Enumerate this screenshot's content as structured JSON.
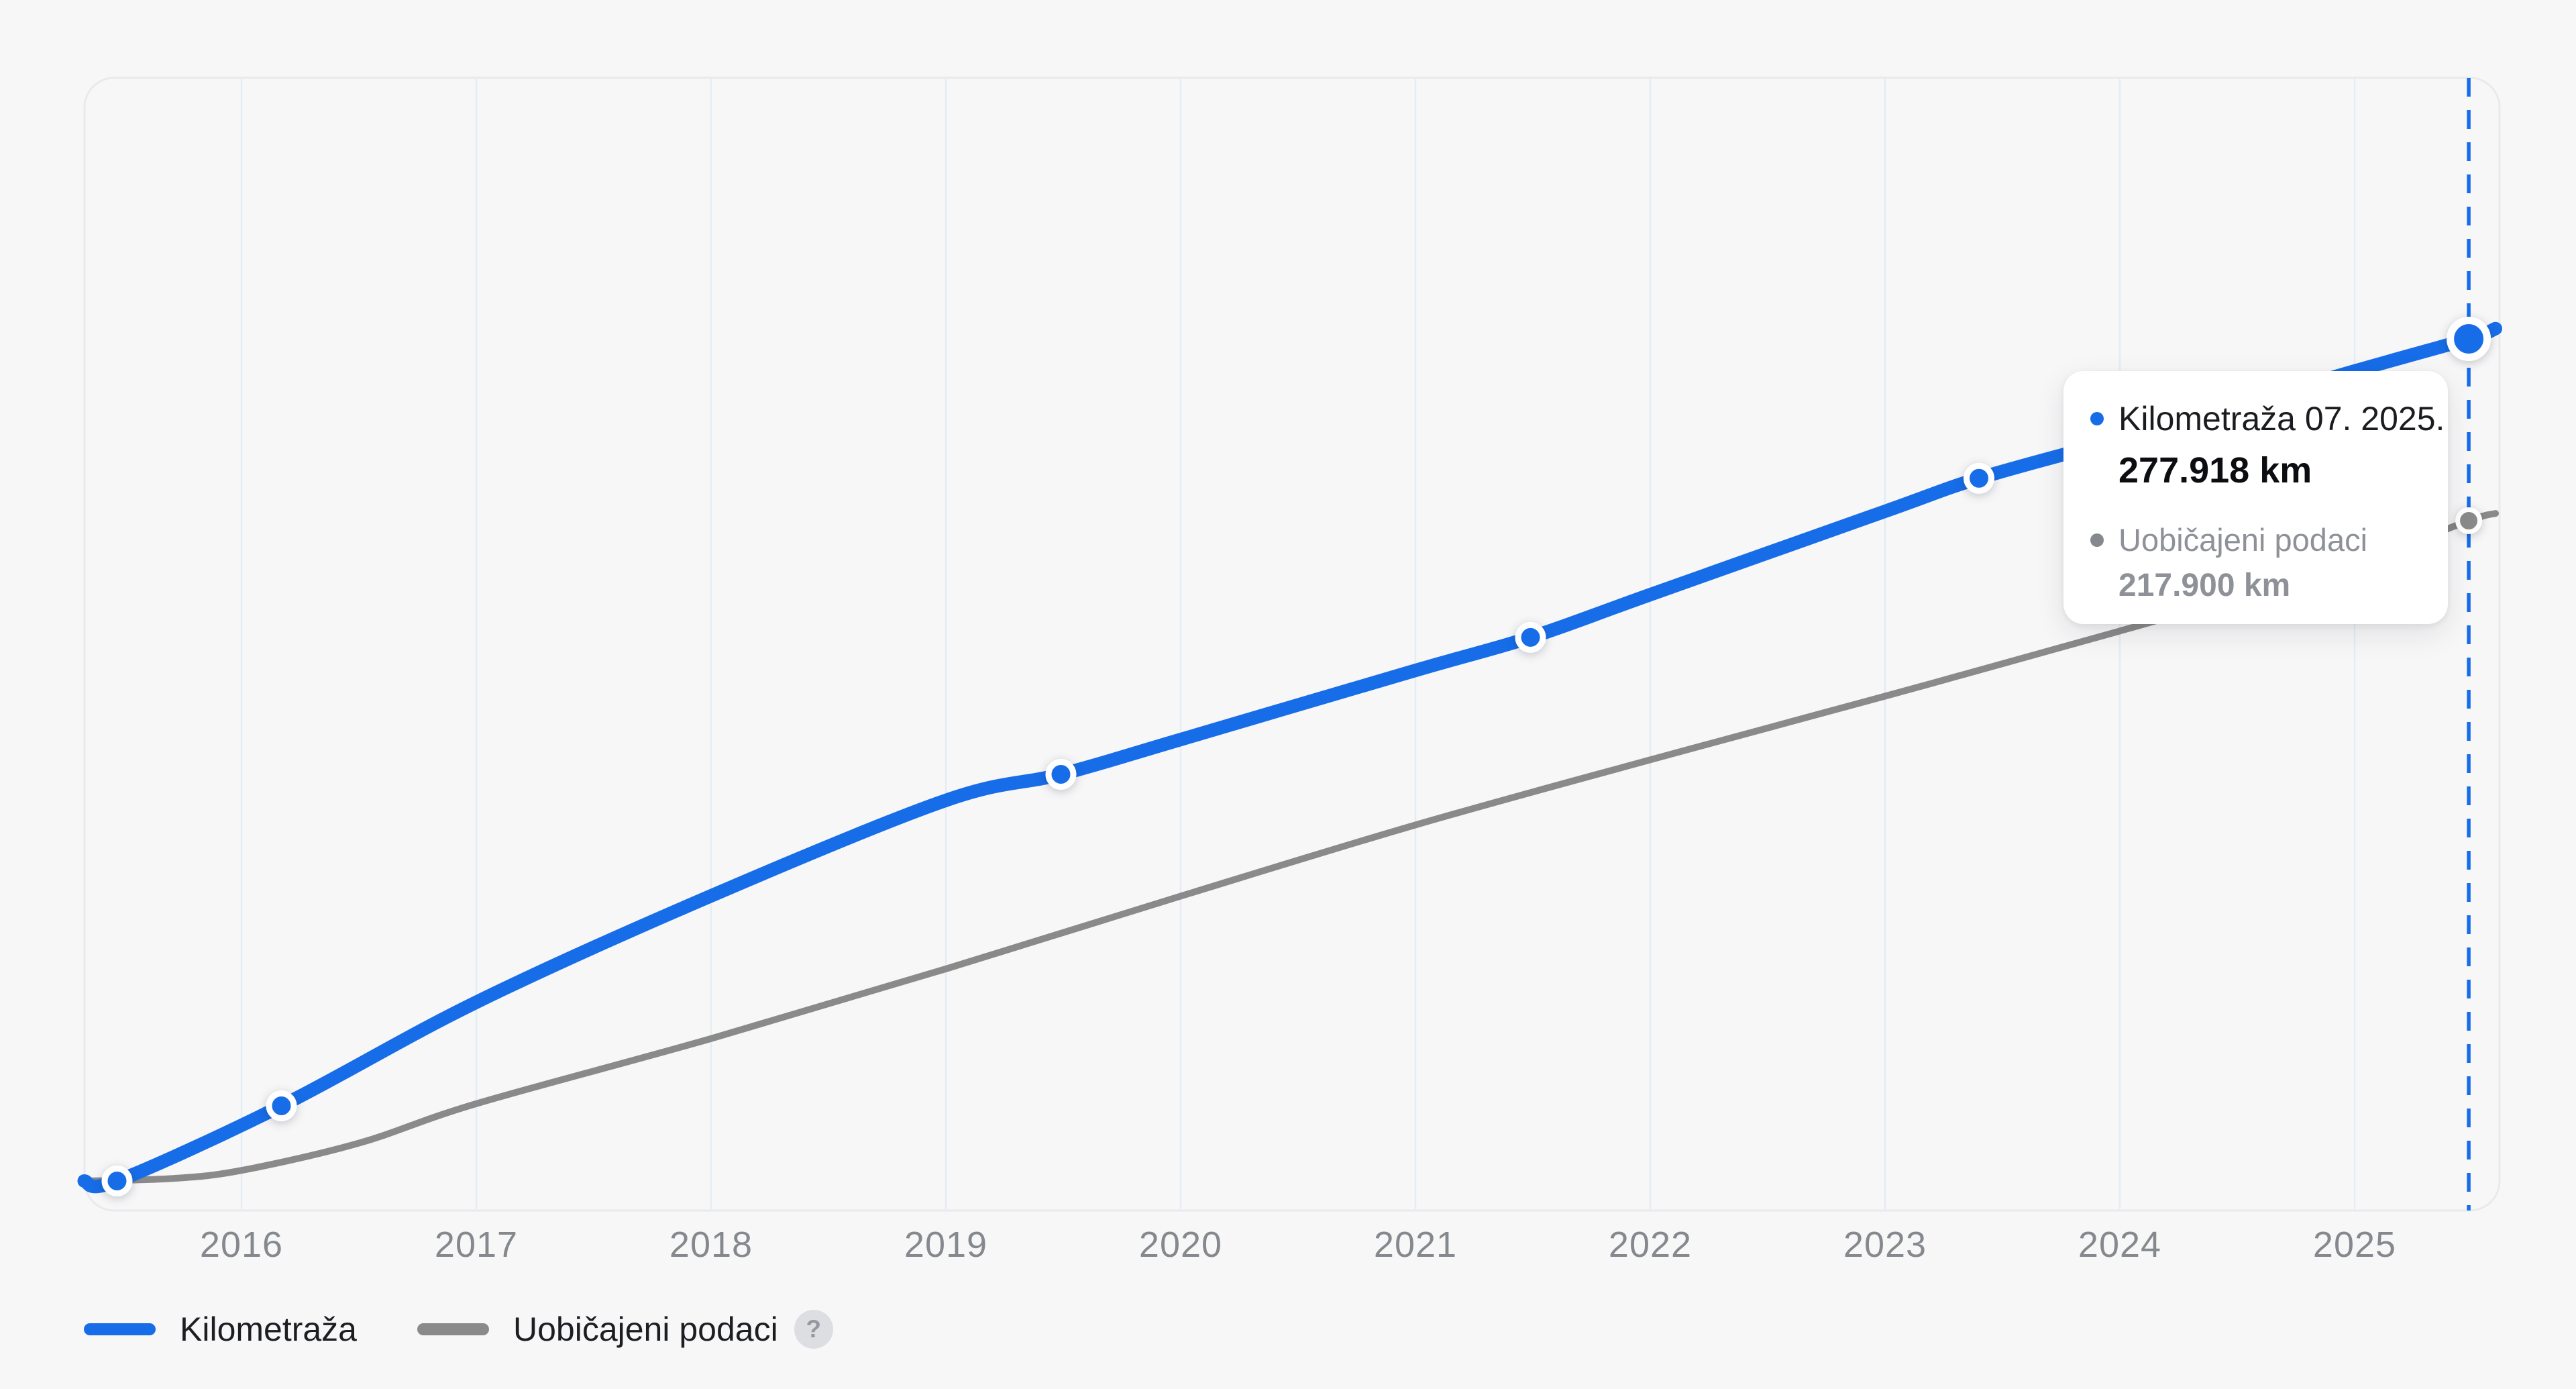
{
  "colors": {
    "background": "#f7f7f8",
    "accent_blue": "#176de8",
    "line_gray": "#8a8a8a",
    "gridline": "#e6ecf3",
    "plot_border": "#e9eaec",
    "tooltip_gray_text": "#8e9197"
  },
  "tooltip": {
    "series1_label": "Kilometraža 07. 2025.",
    "series1_value": "277.918 km",
    "series2_label": "Uobičajeni podaci",
    "series2_value": "217.900 km"
  },
  "legend": {
    "items": [
      {
        "label": "Kilometraža",
        "color": "#176de8"
      },
      {
        "label": "Uobičajeni podaci",
        "color": "#8a8a8a"
      }
    ],
    "help_label": "?"
  },
  "chart_data": {
    "type": "line",
    "title": "",
    "xlabel": "",
    "ylabel": "",
    "x_axis": {
      "unit": "year",
      "tick_labels": [
        "2016",
        "2017",
        "2018",
        "2019",
        "2020",
        "2021",
        "2022",
        "2023",
        "2024",
        "2025"
      ],
      "range": [
        2015.33,
        2025.62
      ]
    },
    "y_axis": {
      "unit": "km",
      "range": [
        0,
        300000
      ],
      "labels_visible": false
    },
    "grid": "vertical-only",
    "legend_position": "bottom-left",
    "cursor": {
      "x": 2025.486,
      "date_label": "07. 2025."
    },
    "series": [
      {
        "name": "Kilometraža",
        "color": "#176de8",
        "points": [
          [
            2015.33,
            0
          ],
          [
            2015.47,
            0
          ],
          [
            2016.17,
            24800
          ],
          [
            2017,
            59000
          ],
          [
            2018,
            94100
          ],
          [
            2019,
            125600
          ],
          [
            2019.49,
            134200
          ],
          [
            2020,
            145700
          ],
          [
            2021,
            168500
          ],
          [
            2021.49,
            179400
          ],
          [
            2022,
            193500
          ],
          [
            2023,
            221000
          ],
          [
            2023.4,
            231900
          ],
          [
            2024,
            244900
          ],
          [
            2025,
            267300
          ],
          [
            2025.486,
            277918
          ],
          [
            2025.6,
            281300
          ]
        ],
        "marker_points": [
          [
            2015.47,
            0
          ],
          [
            2016.17,
            24800
          ],
          [
            2019.49,
            134200
          ],
          [
            2021.49,
            179400
          ],
          [
            2023.4,
            231900
          ]
        ],
        "active_point": [
          2025.486,
          277918
        ],
        "active_value_label": "277.918 km"
      },
      {
        "name": "Uobičajeni podaci",
        "color": "#8a8a8a",
        "points": [
          [
            2015.33,
            0
          ],
          [
            2015.7,
            800
          ],
          [
            2016,
            3500
          ],
          [
            2016.5,
            12500
          ],
          [
            2017,
            25500
          ],
          [
            2018,
            47000
          ],
          [
            2019,
            70000
          ],
          [
            2020,
            94000
          ],
          [
            2021,
            117500
          ],
          [
            2022,
            139000
          ],
          [
            2023,
            160000
          ],
          [
            2024,
            181500
          ],
          [
            2025,
            204000
          ],
          [
            2025.486,
            217900
          ],
          [
            2025.6,
            220300
          ]
        ],
        "marker_points": [],
        "active_point": [
          2025.486,
          217900
        ],
        "active_value_label": "217.900 km"
      }
    ]
  }
}
